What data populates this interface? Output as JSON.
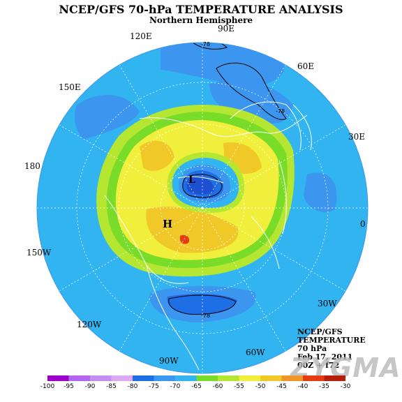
{
  "header": {
    "title": "NCEP/GFS 70-hPa TEMPERATURE ANALYSIS",
    "subtitle": "Northern Hemisphere"
  },
  "longitude_labels": [
    "0",
    "30E",
    "60E",
    "90E",
    "120E",
    "150E",
    "180",
    "150W",
    "120W",
    "90W",
    "60W",
    "30W"
  ],
  "map_marks": {
    "low_label": "L",
    "high_label": "H",
    "contour_labels": [
      "-78",
      "-78",
      "-78"
    ]
  },
  "info": {
    "line1": "NCEP/GFS",
    "line2": "TEMPERATURE",
    "line3": "70 hPa",
    "line4": "Feb 17, 2011",
    "line5": "00Z + f72"
  },
  "watermark": "ZYGMA",
  "colorbar": {
    "labels": [
      "-100",
      "-95",
      "-90",
      "-85",
      "-80",
      "-75",
      "-70",
      "-65",
      "-60",
      "-55",
      "-50",
      "-45",
      "-40",
      "-35",
      "-30"
    ],
    "colors": [
      "#9a00c8",
      "#b066f0",
      "#c88cf0",
      "#e0a8f0",
      "#1e6ee6",
      "#3c96f0",
      "#32b4f0",
      "#78dc28",
      "#b4e632",
      "#f0f03c",
      "#f0c828",
      "#f09628",
      "#e63c14",
      "#b41e0a",
      "#780a0a"
    ]
  },
  "map_colors": {
    "ocean_frame": "#ffffff",
    "outer": "#32b4f0",
    "mid_blue": "#3c96f0",
    "light_green": "#b4e632",
    "green": "#78dc28",
    "yellow": "#f0f03c",
    "orange": "#f0c828",
    "red": "#e63c14",
    "deep_blue": "#1e6ee6",
    "dark_blue": "#1e50d2"
  }
}
